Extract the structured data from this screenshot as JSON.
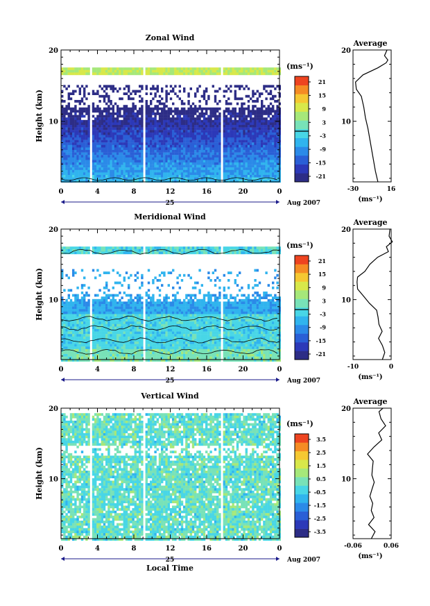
{
  "figure": {
    "date_label": "Aug 2007",
    "day_label": "25",
    "xlabel": "Local Time",
    "x_ticks": [
      "0",
      "4",
      "8",
      "12",
      "16",
      "20",
      "0"
    ],
    "height_ticks": [
      "20",
      "10"
    ],
    "colorbar_unit": "(ms⁻¹)",
    "avg_unit": "(ms⁻¹)"
  },
  "chart_data": [
    {
      "type": "heatmap",
      "title": "Zonal Wind",
      "ylabel": "Height (km)",
      "xlim": [
        0,
        24
      ],
      "ylim": [
        1.5,
        20
      ],
      "colorbar": {
        "ticks": [
          "21",
          "15",
          "9",
          "3",
          "-3",
          "-9",
          "-15",
          "-21"
        ],
        "range": [
          -24,
          24
        ]
      },
      "gaps_hours": [
        [
          3.0,
          3.3
        ],
        [
          8.8,
          9.2
        ],
        [
          17.4,
          17.7
        ]
      ],
      "profile_hours": [
        [
          4,
          -14
        ],
        [
          8,
          -16
        ],
        [
          12,
          -20
        ],
        [
          16,
          -19
        ],
        [
          20,
          -15
        ]
      ],
      "average_profile": {
        "title": "Average",
        "xlim": [
          -30,
          16
        ],
        "x_ticks": [
          "-30",
          "16"
        ],
        "y_ticks": [
          "20",
          "10"
        ],
        "height_km": [
          1.5,
          3,
          5,
          7,
          9,
          10.5,
          12,
          13.5,
          14.5,
          15.5,
          16.5,
          17.5,
          18.2,
          18.6,
          19.2,
          20
        ],
        "values": [
          0,
          -3,
          -6,
          -9,
          -12,
          -15,
          -17,
          -20,
          -26,
          -27,
          -18,
          0,
          10,
          12,
          8,
          11
        ]
      }
    },
    {
      "type": "heatmap",
      "title": "Meridional Wind",
      "ylabel": "Height (km)",
      "xlim": [
        0,
        24
      ],
      "ylim": [
        1.5,
        20
      ],
      "colorbar": {
        "ticks": [
          "21",
          "15",
          "9",
          "3",
          "-3",
          "-9",
          "-15",
          "-21"
        ],
        "range": [
          -24,
          24
        ]
      },
      "gaps_hours": [
        [
          3.0,
          3.3
        ],
        [
          8.8,
          9.2
        ],
        [
          17.4,
          17.7
        ]
      ],
      "average_profile": {
        "title": "Average",
        "xlim": [
          -10,
          3
        ],
        "x_ticks": [
          "-10",
          "0"
        ],
        "y_ticks": [
          "20",
          "10"
        ],
        "height_km": [
          1.5,
          2.5,
          3.5,
          4.5,
          5.5,
          6.5,
          7.5,
          8.5,
          9.5,
          10.5,
          11.5,
          12.5,
          13.2,
          14,
          15,
          16,
          16.8,
          17.5,
          18.2,
          19,
          20
        ],
        "values": [
          0,
          1,
          0,
          -1,
          0,
          -1,
          -1,
          -2,
          -4,
          -6,
          -8,
          -9,
          -8,
          -6,
          -4,
          -2,
          2,
          1,
          3,
          2,
          3
        ]
      }
    },
    {
      "type": "heatmap",
      "title": "Vertical Wind",
      "ylabel": "Height (km)",
      "xlim": [
        0,
        24
      ],
      "ylim": [
        1.5,
        20
      ],
      "colorbar": {
        "ticks": [
          "3.5",
          "2.5",
          "1.5",
          "0.5",
          "-0.5",
          "-1.5",
          "-2.5",
          "-3.5"
        ],
        "range": [
          -4,
          4
        ]
      },
      "gaps_hours": [
        [
          3.0,
          3.3
        ],
        [
          8.8,
          9.2
        ],
        [
          17.4,
          17.7
        ]
      ],
      "average_profile": {
        "title": "Average",
        "xlim": [
          -0.06,
          0.06
        ],
        "x_ticks": [
          "-0.06",
          "0.06"
        ],
        "y_ticks": [
          "20",
          "10"
        ],
        "height_km": [
          1.5,
          2.5,
          3.5,
          4.5,
          5.5,
          6.5,
          7.5,
          8.5,
          9.5,
          10.5,
          11.5,
          12.5,
          13.5,
          14.5,
          15.5,
          16.5,
          17.5,
          18.5,
          19.5,
          20
        ],
        "values": [
          0.0,
          0.01,
          -0.01,
          0.005,
          -0.005,
          0.0,
          -0.01,
          0.0,
          0.01,
          0.0,
          0.005,
          0.0,
          -0.01,
          0.01,
          0.03,
          0.02,
          0.04,
          0.03,
          0.02,
          0.035
        ]
      }
    }
  ]
}
